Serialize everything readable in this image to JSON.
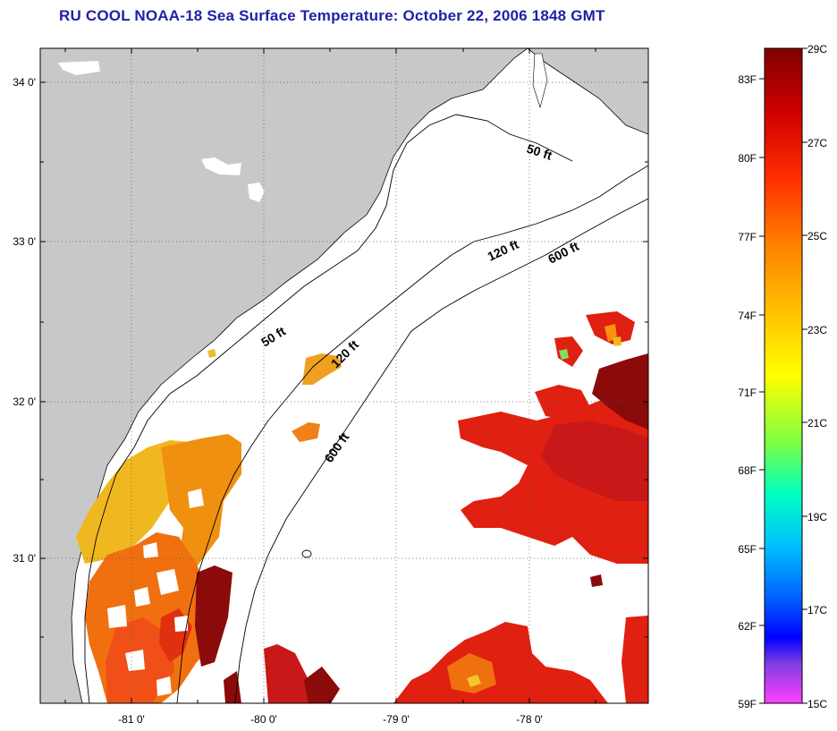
{
  "title": "RU COOL  NOAA-18  Sea Surface Temperature:  October 22, 2006 1848 GMT",
  "axes": {
    "lat_labels": [
      "34 0'",
      "33 0'",
      "32 0'",
      "31 0'"
    ],
    "lon_labels": [
      "-81 0'",
      "-80 0'",
      "-79 0'",
      "-78 0'"
    ]
  },
  "contours": {
    "c50a": "50 ft",
    "c50b": "50 ft",
    "c120a": "120 ft",
    "c120b": "120 ft",
    "c600a": "600 ft",
    "c600b": "600 ft"
  },
  "colorbar": {
    "celsius_labels": [
      "29C",
      "27C",
      "25C",
      "23C",
      "21C",
      "19C",
      "17C",
      "15C"
    ],
    "fahrenheit_labels": [
      "83F",
      "80F",
      "77F",
      "74F",
      "71F",
      "68F",
      "65F",
      "62F",
      "59F"
    ],
    "gradient_colors": [
      "#800000",
      "#d00000",
      "#ff3000",
      "#ff8000",
      "#ffc000",
      "#ffff00",
      "#80ff40",
      "#00ffc0",
      "#00c0ff",
      "#0060ff",
      "#0000ff",
      "#8040e0",
      "#ff40ff"
    ]
  },
  "colors": {
    "land": "#c8c8c8",
    "title": "#1f1fa8",
    "sst_dark": "#8b0a0a",
    "sst_red": "#e02010",
    "sst_orange": "#f07010",
    "sst_yellow": "#f0b820"
  }
}
